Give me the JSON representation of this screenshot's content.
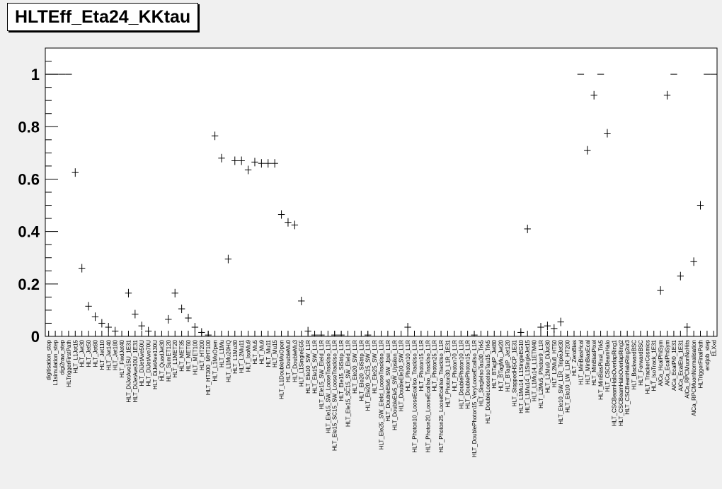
{
  "title": "HLTEff_Eta24_KKtau",
  "chart_data": {
    "type": "scatter",
    "title": "HLTEff_Eta24_KKtau",
    "xlabel": "",
    "ylabel": "",
    "ylim": [
      0,
      1.1
    ],
    "yticks": [
      {
        "value": 0,
        "label": "0"
      },
      {
        "value": 0.2,
        "label": "0.2"
      },
      {
        "value": 0.4,
        "label": "0.4"
      },
      {
        "value": 0.6,
        "label": "0.6"
      },
      {
        "value": 0.8,
        "label": "0.8"
      },
      {
        "value": 1.0,
        "label": "1"
      }
    ],
    "grid": false,
    "legend": "none",
    "marker_color": "#000000",
    "frame_color": "#000000",
    "categories": [
      "digitisation_step",
      "L1simulation_step",
      "digi2raw_step",
      "HLTriggerFirstPath",
      "HLT_L1Jet15",
      "HLT_Jet30",
      "HLT_Jet50",
      "HLT_Jet80",
      "HLT_Jet110",
      "HLT_Jet140",
      "HLT_Jet180",
      "HLT_FwdJet40",
      "HLT_DiJetAve15U_1E31",
      "HLT_DiJetAve30U_1E31",
      "HLT_DiJetAve50U",
      "HLT_DiJetAve70U",
      "HLT_DiJetAve130U",
      "HLT_QuadJet30",
      "HLT_SumET120",
      "HLT_L1MET20",
      "HLT_MET35",
      "HLT_MET60",
      "HLT_MET100",
      "HLT_HT200",
      "HLT_HT300_MHT100",
      "HLT_L1MuOpen",
      "HLT_L1Mu",
      "HLT_L1Mu20HQ",
      "HLT_L1Mu30",
      "HLT_L2Mu11",
      "HLT_IsoMu9",
      "HLT_Mu5",
      "HLT_Mu9",
      "HLT_Mu11",
      "HLT_Mu15",
      "HLT_L1DoubleMuOpen",
      "HLT_DoubleMu0",
      "HLT_DoubleMu3",
      "HLT_L1SingleEG5",
      "HLT_Ele10_SW_L1R",
      "HLT_Ele15_SW_L1R",
      "HLT_Ele15_SW_EleId_L1R",
      "HLT_Ele15_SW_LooseTrackIso_L1R",
      "HLT_Ele15_SC15_SW_LooseTrackIso_L1R",
      "HLT_Ele15_SiStrip_L1R",
      "HLT_Ele15_SC15_SW_EleId_L1R",
      "HLT_Ele20_SW_L1R",
      "HLT_Ele20_SiStrip_L1R",
      "HLT_Ele20_SC15_SW_L1R",
      "HLT_Ele25_SW_L1R",
      "HLT_Ele25_SW_EleId_LooseTrackIso_L1R",
      "HLT_DoubleEle5_SW_Jpsi_L1R",
      "HLT_DoubleEle5_SW_Upsilon_L1R",
      "HLT_DoubleEle10_SW_L1R",
      "HLT_Photon10_L1R",
      "HLT_Photon10_LooseEcalIso_TrackIso_L1R",
      "HLT_Photon15_L1R",
      "HLT_Photon20_LooseEcalIso_TrackIso_L1R",
      "HLT_Photon25_L1R",
      "HLT_Photon25_LooseEcalIso_TrackIso_L1R",
      "HLT_Photon30_L1R_1E31",
      "HLT_Photon70_L1R",
      "HLT_DoublePhoton10_L1R",
      "HLT_DoublePhoton15_L1R",
      "HLT_DoublePhoton15_VeryLooseEcalIso_L1R",
      "HLT_SingleIsoTau30_Trk5",
      "HLT_DoubleLooseIsoTau15_Trk5",
      "HLT_BTagIP_Jet80",
      "HLT_BTagMu_Jet20",
      "HLT_BTagIP_Jet120",
      "HLT_StoppedHSCP_1E31",
      "HLT_L1Mu14_L1SingleEG10",
      "HLT_L1Mu14_L1SingleJet15",
      "HLT_L1Mu14_L1ETM40",
      "HLT_L2Mu5_Photon9_L1R",
      "HLT_L2Mu9_DiJet30",
      "HLT_L2Mu8_HT50",
      "HLT_Ele10_SW_L1R_TripleJet30",
      "HLT_Ele10_LW_L1R_HT200",
      "HLT_ZeroBias",
      "HLT_MinBiasHcal",
      "HLT_MinBiasEcal",
      "HLT_MinBiasPixel",
      "HLT_MinBiasPixel_Trk5",
      "HLT_CSCBeamHalo",
      "HLT_CSCBeamHaloOverlapRing1",
      "HLT_CSCBeamHaloOverlapRing2",
      "HLT_CSCBeamHaloRing2or3",
      "HLT_BackwardBSC",
      "HLT_ForwardBSC",
      "HLT_TrackerCosmics",
      "HLT_IsoTrack_1E31",
      "AlCa_HcalPhiSym",
      "AlCa_EcalPhiSym",
      "AlCa_EcalPi0_1E31",
      "AlCa_EcalEta_1E31",
      "AlCa_RPCMuonNoHits",
      "AlCa_RPCMuonNormalisation",
      "HLTriggerFinalPath",
      "endjob_step",
      "ELXxd"
    ],
    "values": [
      1,
      1,
      1,
      1,
      0.625,
      0.26,
      0.115,
      0.075,
      0.05,
      0.035,
      0.02,
      0.0,
      0.165,
      0.085,
      0.04,
      0.02,
      0.0,
      0.0,
      0.065,
      0.165,
      0.105,
      0.07,
      0.035,
      0.015,
      0.005,
      0.765,
      0.68,
      0.295,
      0.67,
      0.67,
      0.635,
      0.665,
      0.66,
      0.66,
      0.66,
      0.465,
      0.435,
      0.425,
      0.135,
      0.02,
      0.005,
      0.005,
      0.0,
      0.005,
      0.005,
      0.0,
      0.0,
      0.0,
      0.005,
      0.0,
      0.0,
      0.0,
      0.0,
      0.0,
      0.035,
      0.0,
      0.0,
      0.0,
      0.0,
      0.0,
      0.0,
      0.0,
      0.0,
      0.0,
      0.005,
      0.0,
      0.0,
      0.0,
      0.0,
      0.0,
      0.0,
      0.015,
      0.41,
      0.0,
      0.035,
      0.04,
      0.03,
      0.055,
      0.0,
      0.0,
      1,
      0.71,
      0.92,
      1,
      0.775,
      0.0,
      0.0,
      0.0,
      0.0,
      0.0,
      0.0,
      0.0,
      0.175,
      0.92,
      1,
      0.23,
      0.035,
      0.285,
      0.5,
      1,
      1
    ]
  }
}
